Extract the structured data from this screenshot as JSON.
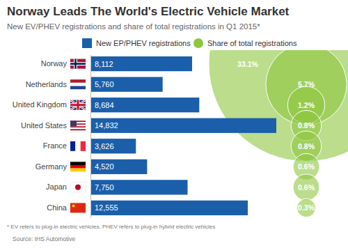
{
  "chart_data": {
    "type": "bar",
    "orientation": "horizontal",
    "title": "Norway Leads The World's Electric Vehicle Market",
    "subtitle": "New EV/PHEV registrations and share of total registrations in Q1 2015*",
    "footnote": "* EV refers to plug-in electric vehicles, PHEV refers to plug-in hybrid electric vehicles",
    "source": "Source: IHS Automotive",
    "categories": [
      "Norway",
      "Netherlands",
      "United Kingdom",
      "United States",
      "France",
      "Germany",
      "Japan",
      "China"
    ],
    "xlim": [
      0,
      15000
    ],
    "tick_labels": "y",
    "data_labels": true,
    "series": [
      {
        "name": "New EP/PHEV registrations",
        "type": "bar",
        "color": "#1b5faa",
        "values": [
          8112,
          5760,
          8684,
          14832,
          3626,
          4520,
          7750,
          12555
        ],
        "value_labels": [
          "8,112",
          "5,760",
          "8,684",
          "14,832",
          "3,626",
          "4,520",
          "7,750",
          "12,555"
        ]
      },
      {
        "name": "Share of total registrations",
        "type": "bubble",
        "color": "#8dc63f",
        "values": [
          33.1,
          5.7,
          1.2,
          0.8,
          0.8,
          0.6,
          0.6,
          0.3
        ],
        "value_labels": [
          "33.1%",
          "5.7%",
          "1.2%",
          "0.8%",
          "0.8%",
          "0.6%",
          "0.6%",
          "0.3%"
        ]
      }
    ]
  }
}
